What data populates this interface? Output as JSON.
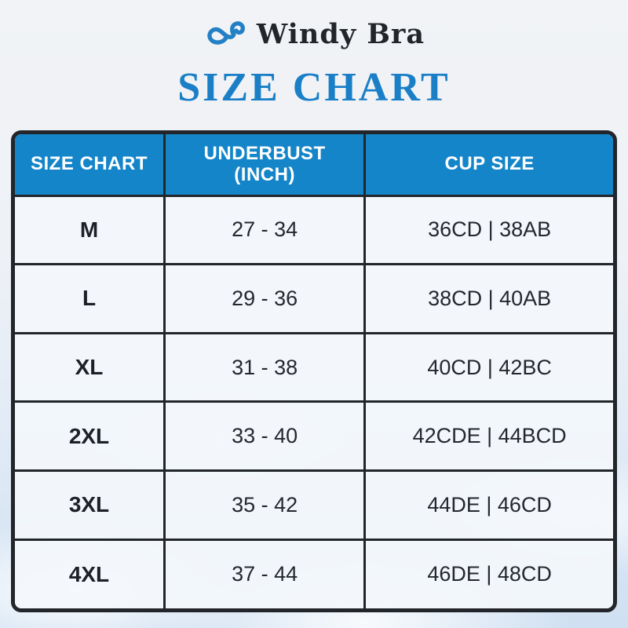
{
  "brand": {
    "name": "Windy Bra",
    "logo_icon": "cloud-infinity-icon",
    "logo_color": "#2380c5"
  },
  "title": "SIZE CHART",
  "colors": {
    "header_bg": "#1485c9",
    "title_blue": "#1a7fc6",
    "border_dark": "#22262b",
    "cell_bg": "#f4f8fc",
    "text_dark": "#24272d"
  },
  "table": {
    "headers": [
      "SIZE CHART",
      "UNDERBUST\n(INCH)",
      "CUP SIZE"
    ],
    "rows": [
      {
        "size": "M",
        "underbust": "27 - 34",
        "cup": "36CD | 38AB"
      },
      {
        "size": "L",
        "underbust": "29 - 36",
        "cup": "38CD | 40AB"
      },
      {
        "size": "XL",
        "underbust": "31 - 38",
        "cup": "40CD | 42BC"
      },
      {
        "size": "2XL",
        "underbust": "33 - 40",
        "cup": "42CDE | 44BCD"
      },
      {
        "size": "3XL",
        "underbust": "35 - 42",
        "cup": "44DE | 46CD"
      },
      {
        "size": "4XL",
        "underbust": "37 - 44",
        "cup": "46DE | 48CD"
      }
    ]
  },
  "chart_data": {
    "type": "table",
    "title": "SIZE CHART",
    "columns": [
      "SIZE CHART",
      "UNDERBUST (INCH)",
      "CUP SIZE"
    ],
    "rows": [
      [
        "M",
        "27 - 34",
        "36CD | 38AB"
      ],
      [
        "L",
        "29 - 36",
        "38CD | 40AB"
      ],
      [
        "XL",
        "31 - 38",
        "40CD | 42BC"
      ],
      [
        "2XL",
        "33 - 40",
        "42CDE | 44BCD"
      ],
      [
        "3XL",
        "35 - 42",
        "44DE | 46CD"
      ],
      [
        "4XL",
        "37 - 44",
        "46DE | 48CD"
      ]
    ]
  }
}
